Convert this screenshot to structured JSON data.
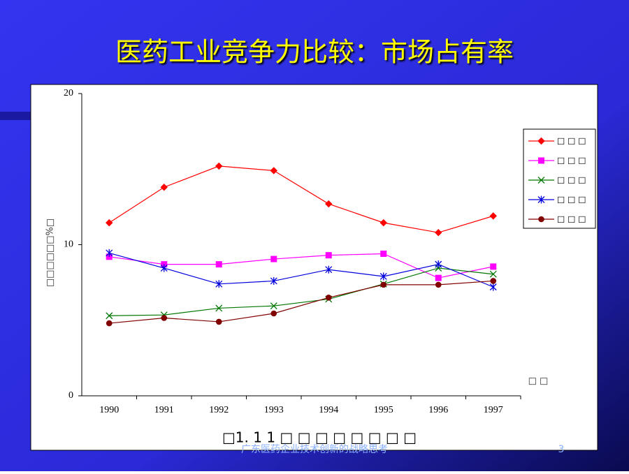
{
  "slide": {
    "title": "医药工业竞争力比较：市场占有率",
    "footer": "广东医药企业技术创新的战略思考",
    "page_number": "3"
  },
  "chart_data": {
    "type": "line",
    "y_label": "□□□□□□%□",
    "x_label": "□ □",
    "caption": "□1. 1 1 □ □ □ □ □ □ □ □",
    "categories": [
      "1990",
      "1991",
      "1992",
      "1993",
      "1994",
      "1995",
      "1996",
      "1997"
    ],
    "ylim": [
      0,
      20
    ],
    "yticks": [
      0,
      10,
      20
    ],
    "series": [
      {
        "name": "□ □ □",
        "color": "#ff0000",
        "marker": "diamond",
        "values": [
          11.45,
          13.8,
          15.2,
          14.9,
          12.7,
          11.45,
          10.8,
          11.9
        ]
      },
      {
        "name": "□ □ □",
        "color": "#ff00ff",
        "marker": "square",
        "values": [
          9.2,
          8.7,
          8.7,
          9.05,
          9.3,
          9.4,
          7.8,
          8.55
        ]
      },
      {
        "name": "□ □ □",
        "color": "#007700",
        "marker": "x",
        "values": [
          5.3,
          5.35,
          5.8,
          5.95,
          6.4,
          7.4,
          8.45,
          8.05
        ]
      },
      {
        "name": "□ □ □",
        "color": "#0000dd",
        "marker": "star",
        "values": [
          9.45,
          8.45,
          7.4,
          7.6,
          8.35,
          7.9,
          8.7,
          7.2
        ]
      },
      {
        "name": "□ □ □",
        "color": "#800000",
        "marker": "circle",
        "values": [
          4.8,
          5.15,
          4.9,
          5.45,
          6.5,
          7.35,
          7.35,
          7.6
        ]
      }
    ]
  }
}
